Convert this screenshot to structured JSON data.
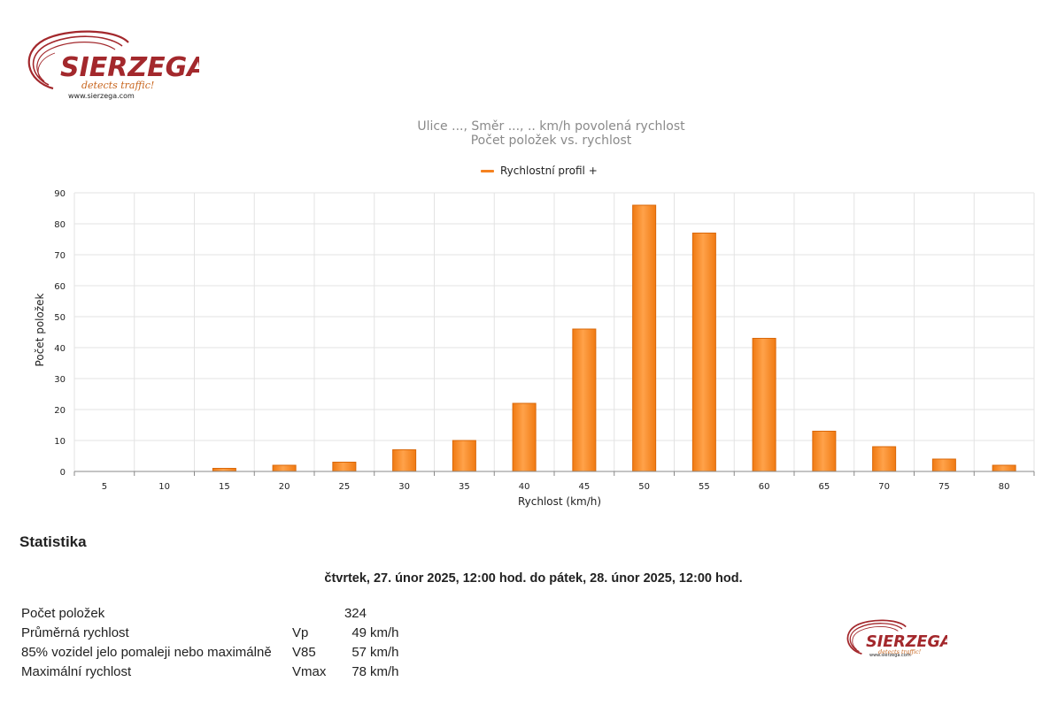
{
  "header": {
    "logo_word": "SIERZEGA",
    "logo_tagline": "detects traffic!",
    "logo_url": "www.sierzega.com"
  },
  "chart_data": {
    "type": "bar",
    "title": "Ulice ..., Směr ..., .. km/h povolená rychlost",
    "subtitle": "Počet položek vs. rychlost",
    "legend": {
      "label": "Rychlostní profil +",
      "placement": "top-center"
    },
    "xlabel": "Rychlost (km/h)",
    "ylabel": "Počet položek",
    "categories": [
      "5",
      "10",
      "15",
      "20",
      "25",
      "30",
      "35",
      "40",
      "45",
      "50",
      "55",
      "60",
      "65",
      "70",
      "75",
      "80"
    ],
    "series": [
      {
        "name": "Rychlostní profil +",
        "values": [
          0,
          0,
          1,
          2,
          3,
          7,
          10,
          22,
          46,
          86,
          77,
          43,
          13,
          8,
          4,
          2
        ]
      }
    ],
    "ylim": [
      0,
      90
    ],
    "yticks": [
      0,
      10,
      20,
      30,
      40,
      50,
      60,
      70,
      80,
      90
    ],
    "grid": true,
    "color": "#f58220"
  },
  "stats": {
    "title": "Statistika",
    "range": "čtvrtek, 27. únor 2025, 12:00 hod. do pátek, 28. únor 2025, 12:00 hod.",
    "rows": [
      {
        "label": "Počet položek",
        "symbol": "",
        "value": "324",
        "unit": ""
      },
      {
        "label": "Průměrná rychlost",
        "symbol": "Vp",
        "value": "49",
        "unit": "km/h"
      },
      {
        "label": "85% vozidel jelo pomaleji nebo maximálně",
        "symbol": "V85",
        "value": "57",
        "unit": "km/h"
      },
      {
        "label": "Maximální rychlost",
        "symbol": "Vmax",
        "value": "78",
        "unit": "km/h"
      }
    ]
  }
}
